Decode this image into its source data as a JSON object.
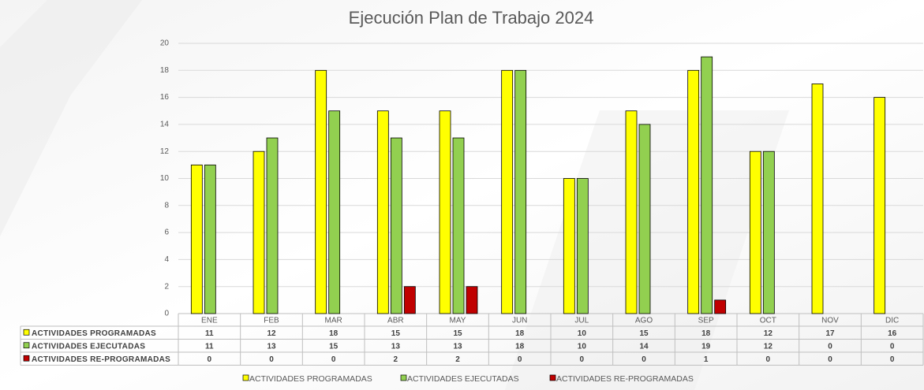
{
  "chart_data": {
    "type": "bar",
    "title": "Ejecución Plan de Trabajo 2024",
    "categories": [
      "ENE",
      "FEB",
      "MAR",
      "ABR",
      "MAY",
      "JUN",
      "JUL",
      "AGO",
      "SEP",
      "OCT",
      "NOV",
      "DIC"
    ],
    "series": [
      {
        "name": "ACTIVIDADES PROGRAMADAS",
        "color": "#ffff00",
        "values": [
          11,
          12,
          18,
          15,
          15,
          18,
          10,
          15,
          18,
          12,
          17,
          16
        ]
      },
      {
        "name": "ACTIVIDADES EJECUTADAS",
        "color": "#92d050",
        "values": [
          11,
          13,
          15,
          13,
          13,
          18,
          10,
          14,
          19,
          12,
          0,
          0
        ]
      },
      {
        "name": "ACTIVIDADES RE-PROGRAMADAS",
        "color": "#c00000",
        "values": [
          0,
          0,
          0,
          2,
          2,
          0,
          0,
          0,
          1,
          0,
          0,
          0
        ]
      }
    ],
    "ylim": [
      0,
      20
    ],
    "yticks": [
      0,
      2,
      4,
      6,
      8,
      10,
      12,
      14,
      16,
      18,
      20
    ],
    "grid": true
  }
}
